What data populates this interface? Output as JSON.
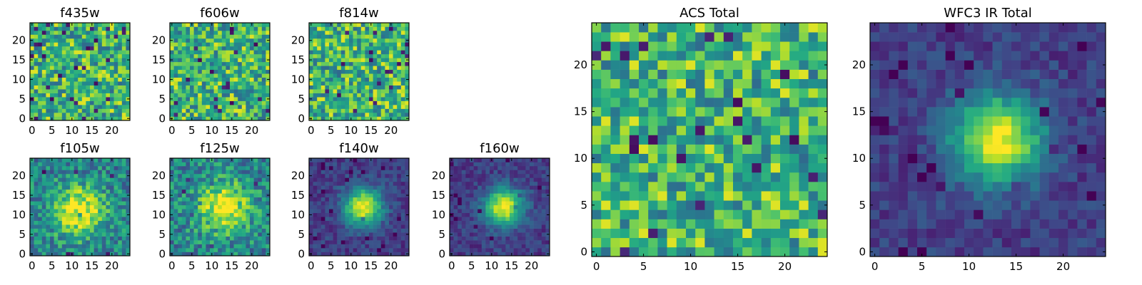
{
  "colormap": "viridis",
  "chart_data": [
    {
      "type": "heatmap",
      "title": "f435w",
      "pattern": "noise",
      "grid_size": 25,
      "xlim": [
        0,
        24
      ],
      "ylim": [
        0,
        24
      ],
      "xticks": [
        0,
        5,
        10,
        15,
        20
      ],
      "yticks": [
        0,
        5,
        10,
        15,
        20
      ],
      "origin": "lower"
    },
    {
      "type": "heatmap",
      "title": "f606w",
      "pattern": "noise",
      "grid_size": 25,
      "xlim": [
        0,
        24
      ],
      "ylim": [
        0,
        24
      ],
      "xticks": [
        0,
        5,
        10,
        15,
        20
      ],
      "yticks": [
        0,
        5,
        10,
        15,
        20
      ],
      "origin": "lower"
    },
    {
      "type": "heatmap",
      "title": "f814w",
      "pattern": "noise",
      "grid_size": 25,
      "xlim": [
        0,
        24
      ],
      "ylim": [
        0,
        24
      ],
      "xticks": [
        0,
        5,
        10,
        15,
        20
      ],
      "yticks": [
        0,
        5,
        10,
        15,
        20
      ],
      "origin": "lower"
    },
    {
      "type": "heatmap",
      "title": "f105w",
      "pattern": "source",
      "peak_x": 12,
      "peak_y": 11,
      "grid_size": 25,
      "xlim": [
        0,
        24
      ],
      "ylim": [
        0,
        24
      ],
      "xticks": [
        0,
        5,
        10,
        15,
        20
      ],
      "yticks": [
        0,
        5,
        10,
        15,
        20
      ],
      "origin": "lower"
    },
    {
      "type": "heatmap",
      "title": "f125w",
      "pattern": "source",
      "peak_x": 13,
      "peak_y": 12,
      "grid_size": 25,
      "xlim": [
        0,
        24
      ],
      "ylim": [
        0,
        24
      ],
      "xticks": [
        0,
        5,
        10,
        15,
        20
      ],
      "yticks": [
        0,
        5,
        10,
        15,
        20
      ],
      "origin": "lower"
    },
    {
      "type": "heatmap",
      "title": "f140w",
      "pattern": "source",
      "peak_x": 13,
      "peak_y": 12,
      "grid_size": 25,
      "xlim": [
        0,
        24
      ],
      "ylim": [
        0,
        24
      ],
      "xticks": [
        0,
        5,
        10,
        15,
        20
      ],
      "yticks": [
        0,
        5,
        10,
        15,
        20
      ],
      "origin": "lower"
    },
    {
      "type": "heatmap",
      "title": "f160w",
      "pattern": "source",
      "peak_x": 13,
      "peak_y": 12,
      "grid_size": 25,
      "xlim": [
        0,
        24
      ],
      "ylim": [
        0,
        24
      ],
      "xticks": [
        0,
        5,
        10,
        15,
        20
      ],
      "yticks": [
        0,
        5,
        10,
        15,
        20
      ],
      "origin": "lower"
    },
    {
      "type": "heatmap",
      "title": "ACS Total",
      "pattern": "noise",
      "grid_size": 25,
      "xlim": [
        0,
        24
      ],
      "ylim": [
        0,
        24
      ],
      "xticks": [
        0,
        5,
        10,
        15,
        20
      ],
      "yticks": [
        0,
        5,
        10,
        15,
        20
      ],
      "origin": "lower"
    },
    {
      "type": "heatmap",
      "title": "WFC3 IR Total",
      "pattern": "source",
      "peak_x": 13,
      "peak_y": 12,
      "grid_size": 25,
      "xlim": [
        0,
        24
      ],
      "ylim": [
        0,
        24
      ],
      "xticks": [
        0,
        5,
        10,
        15,
        20
      ],
      "yticks": [
        0,
        5,
        10,
        15,
        20
      ],
      "origin": "lower"
    }
  ]
}
